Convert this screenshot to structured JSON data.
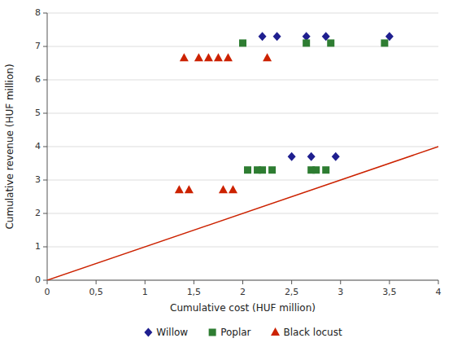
{
  "chart_data": {
    "type": "scatter",
    "xlabel": "Cumulative cost (HUF million)",
    "ylabel": "Cumulative revenue (HUF million)",
    "xlim": [
      0,
      4
    ],
    "ylim": [
      0,
      8
    ],
    "xticks": [
      0,
      {
        "value": 0.5,
        "label": "0,5"
      },
      1,
      {
        "value": 1.5,
        "label": "1,5"
      },
      2,
      {
        "value": 2.5,
        "label": "2,5"
      },
      3,
      {
        "value": 3.5,
        "label": "3,5"
      },
      4
    ],
    "yticks": [
      0,
      1,
      2,
      3,
      4,
      5,
      6,
      7,
      8
    ],
    "grid": "y",
    "legend": "bottom",
    "series": [
      {
        "type": "line",
        "color": "#cc2200",
        "line_style": "solid",
        "x": [
          0,
          4
        ],
        "values": [
          0,
          4
        ]
      },
      {
        "name": "Willow",
        "type": "scatter",
        "marker": "diamond",
        "color": "#1f1f8f",
        "x": [
          2.2,
          2.35,
          2.5,
          2.65,
          2.7,
          2.85,
          2.95,
          3.5
        ],
        "values": [
          7.3,
          7.3,
          3.7,
          7.3,
          3.7,
          7.3,
          3.7,
          7.3
        ]
      },
      {
        "name": "Poplar",
        "type": "scatter",
        "marker": "square",
        "color": "#2e7d32",
        "x": [
          2.0,
          2.15,
          2.3,
          2.65,
          2.75,
          2.9,
          3.45,
          2.05,
          2.2,
          2.7,
          2.85
        ],
        "values": [
          7.1,
          3.3,
          3.3,
          7.1,
          3.3,
          7.1,
          7.1,
          3.3,
          3.3,
          3.3,
          3.3
        ]
      },
      {
        "name": "Black locust",
        "type": "scatter",
        "marker": "triangle",
        "color": "#cc2200",
        "x": [
          1.4,
          1.55,
          1.65,
          1.75,
          1.85,
          2.25,
          1.35,
          1.45,
          1.8,
          1.9
        ],
        "values": [
          6.65,
          6.65,
          6.65,
          6.65,
          6.65,
          6.65,
          2.7,
          2.7,
          2.7,
          2.7
        ]
      }
    ]
  }
}
